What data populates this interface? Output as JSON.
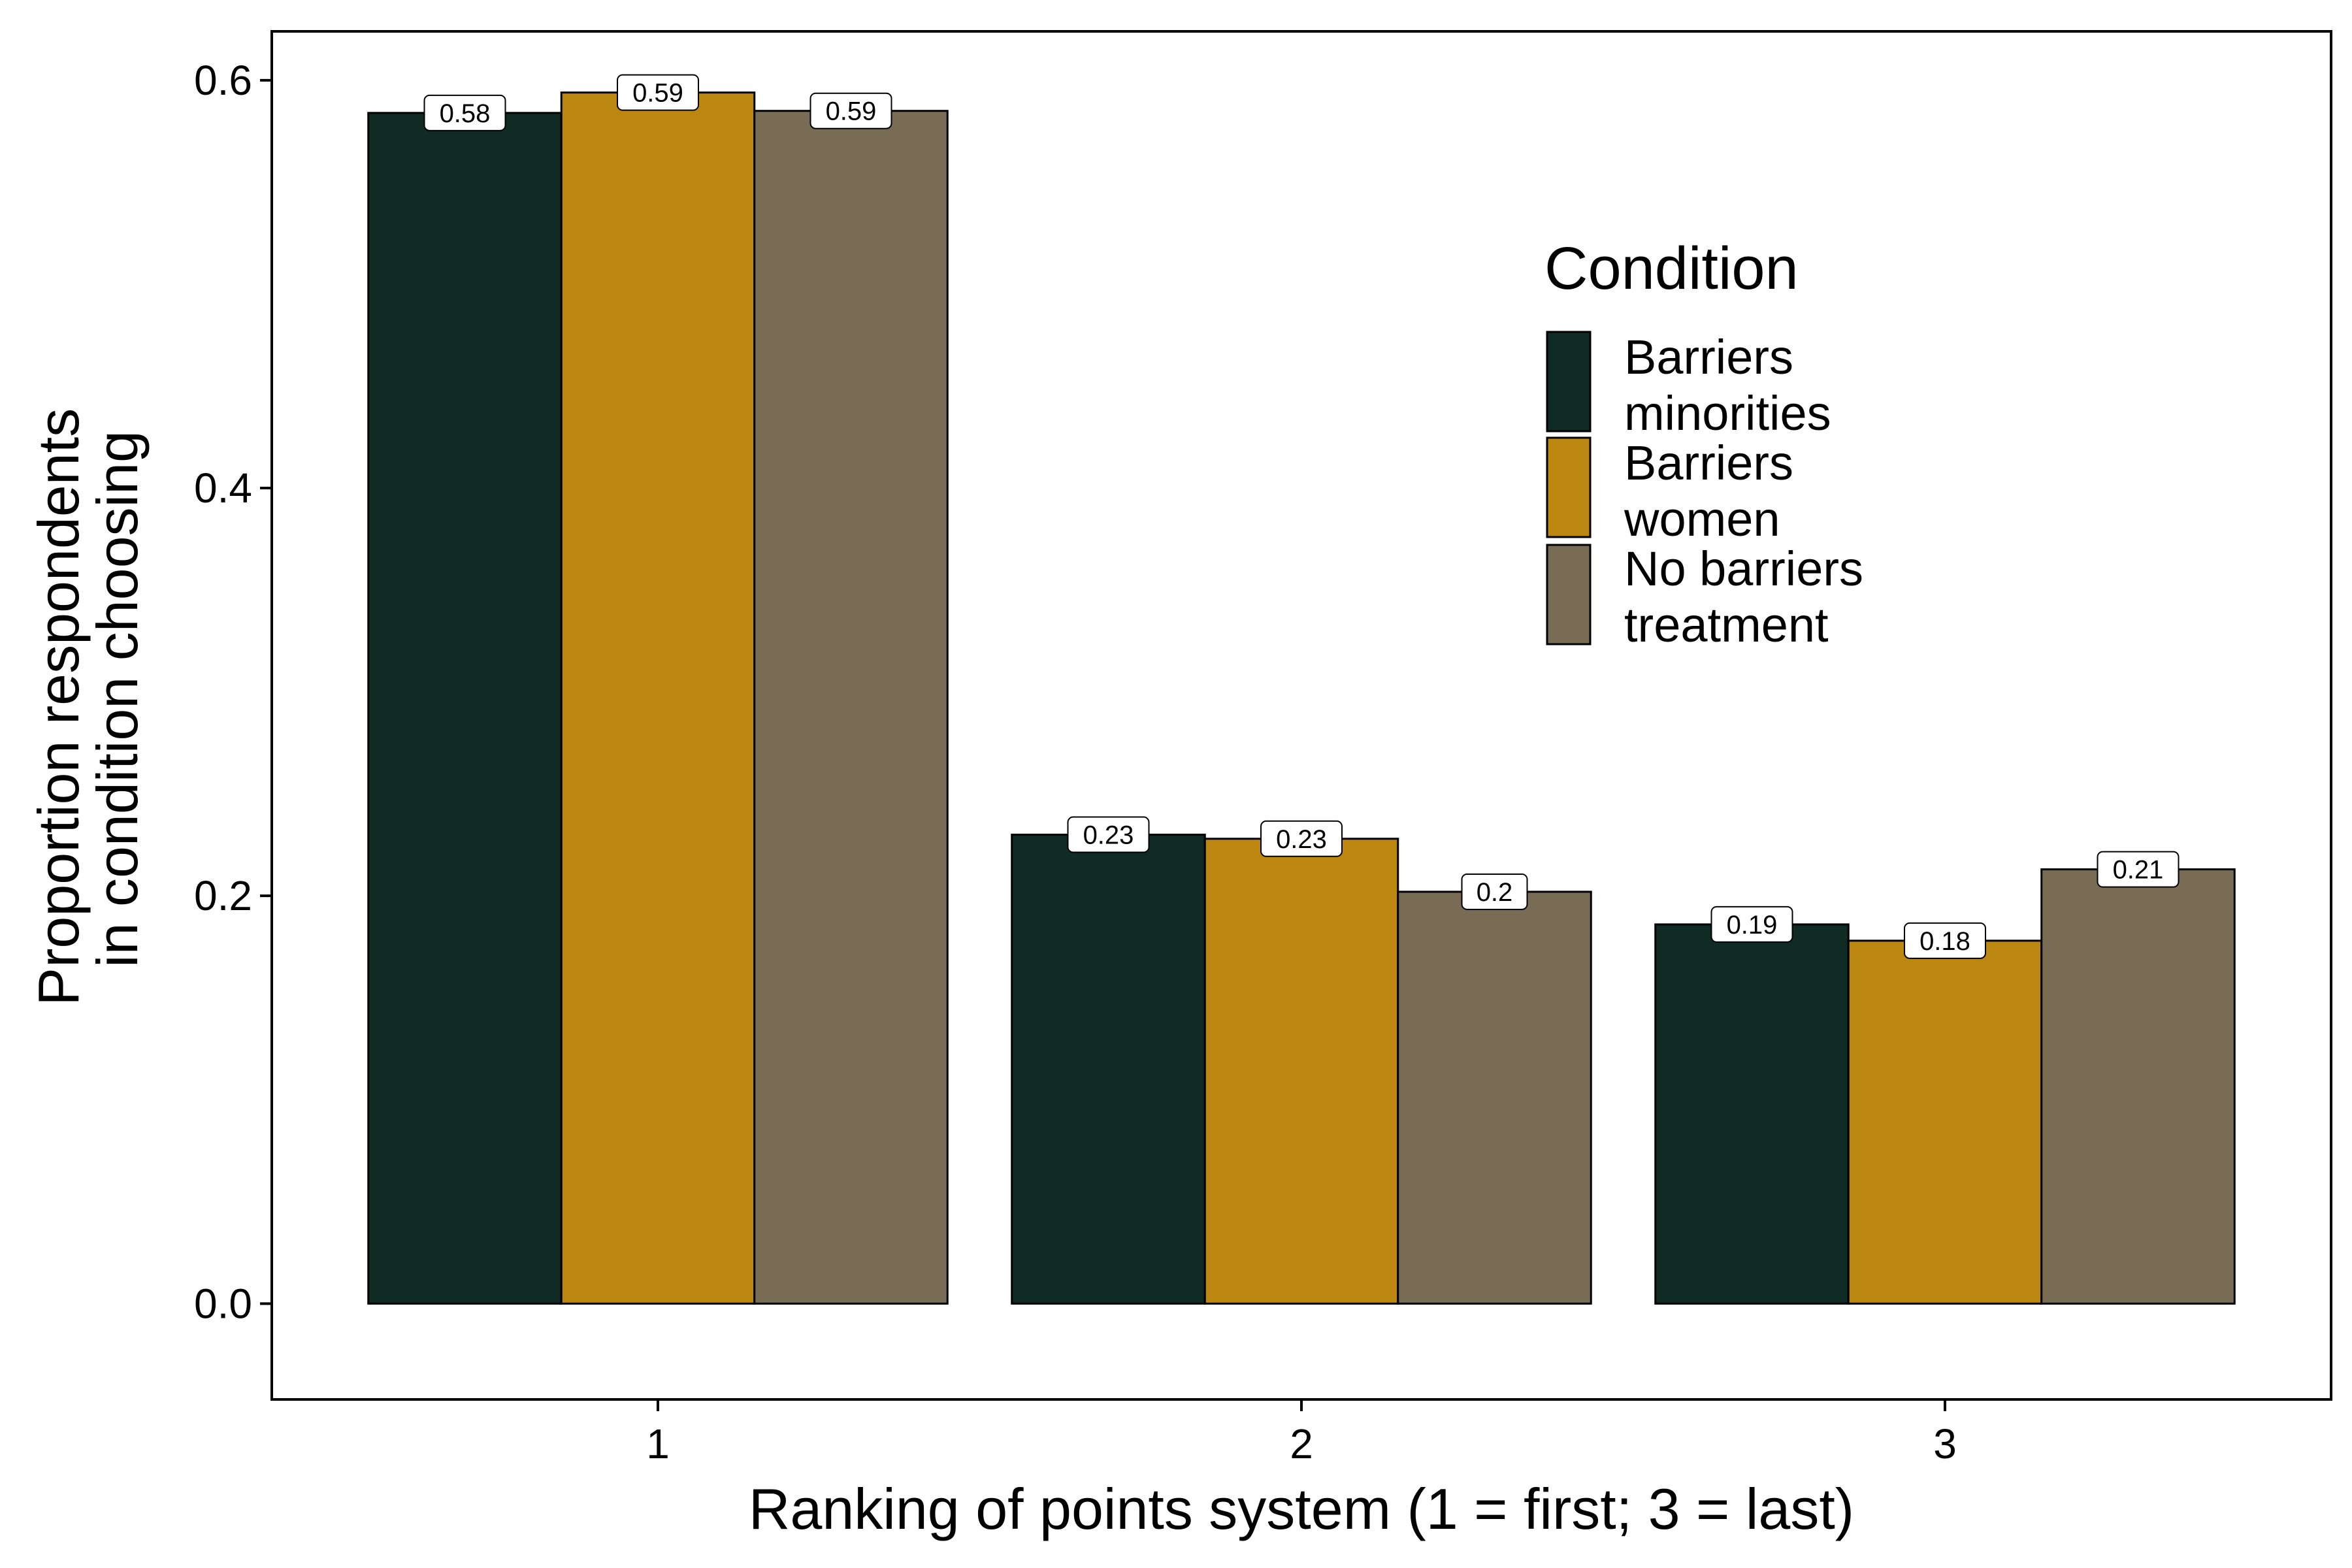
{
  "chart_data": {
    "type": "bar",
    "xlabel": "Ranking of points system (1 = first; 3 = last)",
    "ylabel": [
      "Proportion respondents",
      "in condition choosing"
    ],
    "categories": [
      "1",
      "2",
      "3"
    ],
    "ylim": [
      -0.047,
      0.624
    ],
    "yticks": [
      0.0,
      0.2,
      0.4,
      0.6
    ],
    "ytick_labels": [
      "0.0",
      "0.2",
      "0.4",
      "0.6"
    ],
    "grid": false,
    "legend": {
      "title": "Condition",
      "position": "top-right inside",
      "entries": [
        {
          "lines": [
            "Barriers",
            "minorities"
          ]
        },
        {
          "lines": [
            "Barriers",
            "women"
          ]
        },
        {
          "lines": [
            "No barriers",
            "treatment"
          ]
        }
      ]
    },
    "series": [
      {
        "name": "Barriers minorities",
        "color": "#0f2b24",
        "values": [
          0.584,
          0.23,
          0.186
        ],
        "labels": [
          "0.58",
          "0.23",
          "0.19"
        ]
      },
      {
        "name": "Barriers women",
        "color": "#bc8711",
        "values": [
          0.594,
          0.228,
          0.178
        ],
        "labels": [
          "0.59",
          "0.23",
          "0.18"
        ]
      },
      {
        "name": "No barriers treatment",
        "color": "#786c55",
        "values": [
          0.585,
          0.202,
          0.213
        ],
        "labels": [
          "0.59",
          "0.2",
          "0.21"
        ]
      }
    ]
  }
}
